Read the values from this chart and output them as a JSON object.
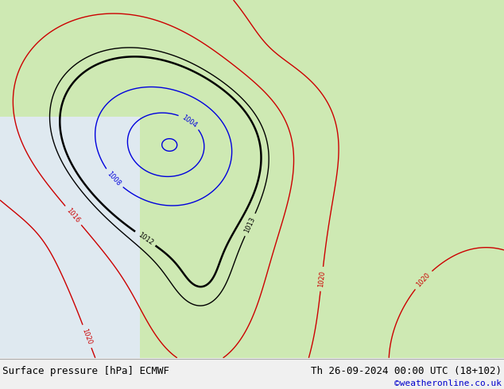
{
  "footer_left": "Surface pressure [hPa] ECMWF",
  "footer_right": "Th 26-09-2024 00:00 UTC (18+102)",
  "footer_credit": "©weatheronline.co.uk",
  "ocean_color": "#dce8f0",
  "land_color": "#c8e8a8",
  "fig_width": 6.34,
  "fig_height": 4.9,
  "dpi": 100,
  "footer_color": "#000000",
  "credit_color": "#0000cc",
  "contour_blue": "#0000dd",
  "contour_red": "#cc0000",
  "contour_black": "#000000",
  "label_fontsize": 6,
  "footer_fontsize": 9
}
